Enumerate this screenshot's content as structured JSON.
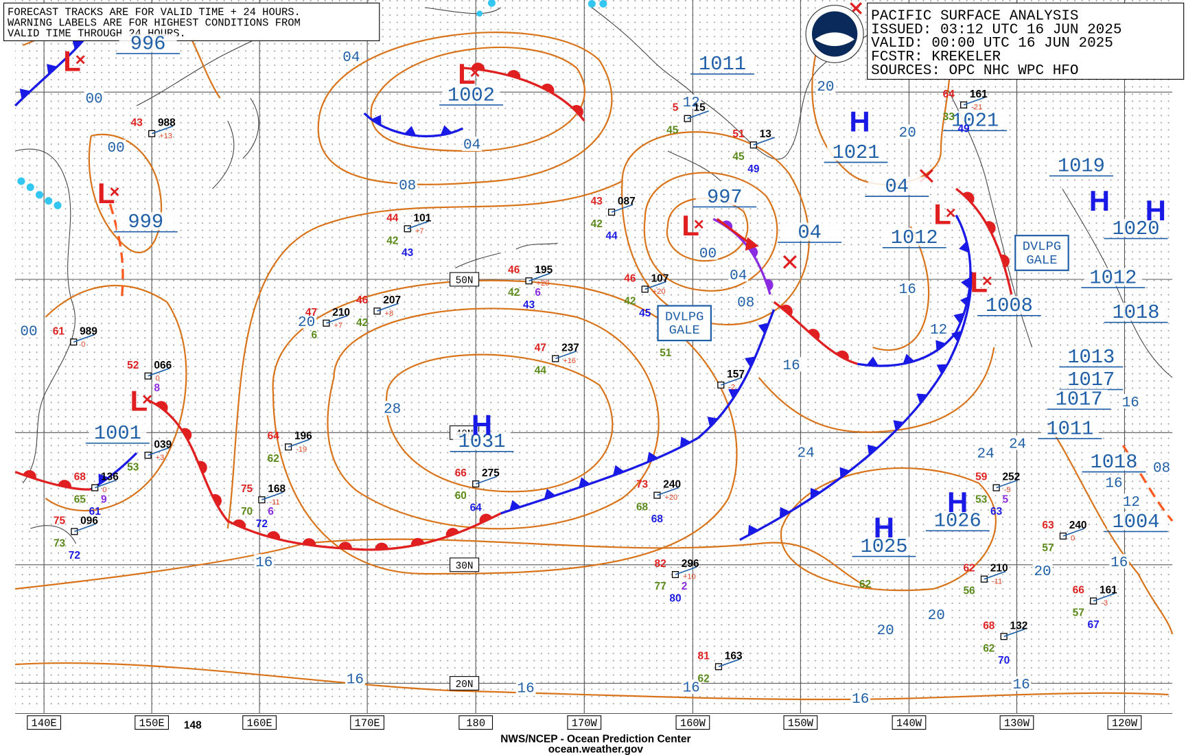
{
  "note": [
    "FORECAST TRACKS ARE FOR VALID TIME + 24 HOURS.",
    "WARNING LABELS ARE FOR HIGHEST CONDITIONS FROM",
    "VALID TIME THROUGH 24 HOURS."
  ],
  "title_box": [
    "PACIFIC SURFACE ANALYSIS",
    "ISSUED: 03:12 UTC 16 JUN 2025",
    "VALID:  00:00 UTC 16 JUN 2025",
    "FCSTR:  KREKELER",
    "SOURCES: OPC NHC WPC HFO"
  ],
  "longitude_labels": [
    "140E",
    "150E",
    "160E",
    "170E",
    "180",
    "170W",
    "160W",
    "150W",
    "140W",
    "130W",
    "120W"
  ],
  "latitude_labels": [
    "50N",
    "40N",
    "30N",
    "20N"
  ],
  "extra_label": "148",
  "pressure_centers": [
    {
      "symbol": "L",
      "value": "996"
    },
    {
      "symbol": "L",
      "value": "1002"
    },
    {
      "symbol": "L",
      "value": "999"
    },
    {
      "symbol": "L",
      "value": "997"
    },
    {
      "symbol": "L",
      "value": "1001"
    },
    {
      "symbol": "H",
      "value": "1031"
    },
    {
      "symbol": "H",
      "value": "1021"
    },
    {
      "value": "1021"
    },
    {
      "value": "1011"
    },
    {
      "symbol": "H",
      "value": "1019"
    },
    {
      "symbol": "H",
      "value": "1020"
    },
    {
      "symbol": "L",
      "value": "1012"
    },
    {
      "symbol": "L",
      "value": "1008"
    },
    {
      "value": "1012"
    },
    {
      "value": "1018"
    },
    {
      "value": "1013"
    },
    {
      "value": "1017"
    },
    {
      "value": "1017"
    },
    {
      "value": "1011"
    },
    {
      "value": "1018"
    },
    {
      "value": "1004"
    },
    {
      "symbol": "H",
      "value": "1026"
    },
    {
      "symbol": "H",
      "value": "1025"
    },
    {
      "value": "04"
    },
    {
      "value": "04"
    }
  ],
  "isobar_labels": [
    "04",
    "00",
    "00",
    "08",
    "04",
    "00",
    "04",
    "08",
    "12",
    "20",
    "20",
    "16",
    "12",
    "16",
    "28",
    "24",
    "20",
    "00",
    "16",
    "24",
    "24",
    "20",
    "20",
    "20",
    "16",
    "16",
    "16",
    "16",
    "16",
    "16",
    "12",
    "16",
    "08",
    "16"
  ],
  "warnings": [
    "DVLPG\nGALE",
    "DVLPG\nGALE"
  ],
  "stations": [
    {
      "temp": "43",
      "pressure": "988",
      "tendency": "+13"
    },
    {
      "temp": "61",
      "pressure": "989",
      "tendency": "0"
    },
    {
      "temp": "52",
      "pressure": "066",
      "tendency": "0",
      "wave": "8"
    },
    {
      "pressure": "039",
      "tendency": "+3",
      "dew": "53"
    },
    {
      "temp": "68",
      "pressure": "136",
      "tendency": "0",
      "dew": "65",
      "wave": "9",
      "sea": "61"
    },
    {
      "temp": "75",
      "pressure": "096",
      "dew": "73",
      "sea": "72"
    },
    {
      "temp": "44",
      "pressure": "101",
      "tendency": "+7",
      "dew": "42",
      "sea": "43"
    },
    {
      "temp": "47",
      "pressure": "210",
      "tendency": "+7",
      "dew": "6"
    },
    {
      "temp": "46",
      "pressure": "207",
      "tendency": "+8",
      "dew": "42"
    },
    {
      "temp": "46",
      "pressure": "195",
      "tendency": "+20",
      "dew": "42",
      "wave": "6",
      "sea": "43"
    },
    {
      "temp": "47",
      "pressure": "237",
      "tendency": "+16",
      "dew": "44"
    },
    {
      "temp": "64",
      "pressure": "196",
      "tendency": "-19",
      "dew": "62"
    },
    {
      "temp": "75",
      "pressure": "168",
      "tendency": "-11",
      "dew": "70",
      "wave": "6",
      "sea": "72"
    },
    {
      "temp": "66",
      "pressure": "275",
      "dew": "60",
      "sea": "64"
    },
    {
      "temp": "73",
      "pressure": "240",
      "tendency": "+20",
      "dew": "68",
      "sea": "68"
    },
    {
      "temp": "82",
      "pressure": "296",
      "tendency": "+10",
      "dew": "77",
      "wave": "2",
      "sea": "80"
    },
    {
      "temp": "81",
      "pressure": "163",
      "dew": "62"
    },
    {
      "pressure": "157",
      "tendency": "-2"
    },
    {
      "temp": "46",
      "pressure": "107",
      "tendency": "+20",
      "dew": "42",
      "sea": "45"
    },
    {
      "temp": "43",
      "pressure": "087",
      "dew": "42",
      "sea": "44"
    },
    {
      "temp": "59",
      "pressure": "252",
      "tendency": "-5",
      "dew": "53",
      "wave": "5",
      "sea": "63"
    },
    {
      "temp": "62",
      "pressure": "210",
      "tendency": "-11",
      "dew": "56"
    },
    {
      "temp": "68",
      "pressure": "132",
      "dew": "62",
      "sea": "70"
    },
    {
      "temp": "63",
      "pressure": "240",
      "tendency": "0",
      "dew": "57"
    },
    {
      "temp": "66",
      "pressure": "161",
      "tendency": "-3",
      "dew": "57",
      "sea": "67"
    },
    {
      "temp": "64",
      "pressure": "161",
      "tendency": "-21",
      "dew": "33",
      "sea": "49"
    },
    {
      "temp": "51",
      "pressure": "13",
      "dew": "45",
      "sea": "49"
    },
    {
      "temp": "5",
      "pressure": "15",
      "dew": "45"
    },
    {
      "dew": "51"
    },
    {
      "dew": "62"
    }
  ],
  "footer": [
    "NWS/NCEP - Ocean Prediction Center",
    "ocean.weather.gov"
  ]
}
